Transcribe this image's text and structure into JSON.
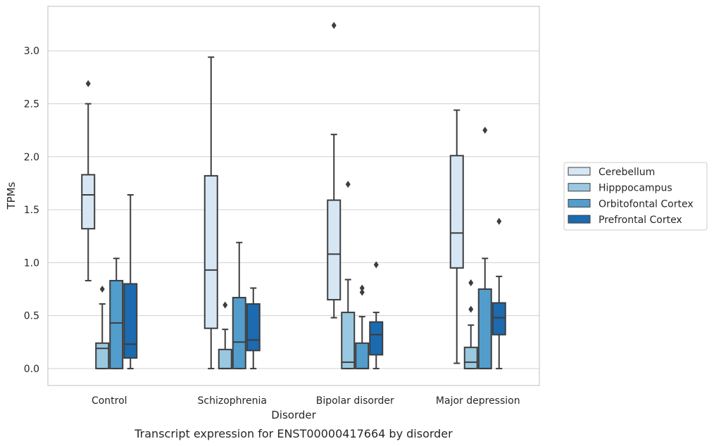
{
  "chart_data": {
    "type": "boxplot",
    "title": "",
    "caption": "Transcript expression for ENST00000417664 by disorder",
    "xlabel": "Disorder",
    "ylabel": "TPMs",
    "ylim": [
      -0.16,
      3.42
    ],
    "yticks": [
      "0.0",
      "0.5",
      "1.0",
      "1.5",
      "2.0",
      "2.5",
      "3.0"
    ],
    "grid": "horizontal",
    "legend_position": "right",
    "categories": [
      "Control",
      "Schizophrenia",
      "Bipolar disorder",
      "Major depression"
    ],
    "series": [
      {
        "name": "Cerebellum",
        "color": "#d6e6f4",
        "boxes": [
          {
            "whislo": 0.83,
            "q1": 1.32,
            "med": 1.64,
            "q3": 1.83,
            "whishi": 2.5,
            "fliers": [
              2.69
            ]
          },
          {
            "whislo": 0.0,
            "q1": 0.38,
            "med": 0.93,
            "q3": 1.82,
            "whishi": 2.94,
            "fliers": []
          },
          {
            "whislo": 0.48,
            "q1": 0.65,
            "med": 1.08,
            "q3": 1.59,
            "whishi": 2.21,
            "fliers": [
              3.24
            ]
          },
          {
            "whislo": 0.05,
            "q1": 0.95,
            "med": 1.28,
            "q3": 2.01,
            "whishi": 2.44,
            "fliers": []
          }
        ]
      },
      {
        "name": "Hipppocampus",
        "color": "#9ac8e0",
        "boxes": [
          {
            "whislo": 0.0,
            "q1": 0.0,
            "med": 0.19,
            "q3": 0.24,
            "whishi": 0.61,
            "fliers": [
              0.75
            ]
          },
          {
            "whislo": 0.0,
            "q1": 0.0,
            "med": 0.0,
            "q3": 0.18,
            "whishi": 0.37,
            "fliers": [
              0.6
            ]
          },
          {
            "whislo": 0.0,
            "q1": 0.0,
            "med": 0.06,
            "q3": 0.53,
            "whishi": 0.84,
            "fliers": [
              1.74
            ]
          },
          {
            "whislo": 0.0,
            "q1": 0.0,
            "med": 0.06,
            "q3": 0.2,
            "whishi": 0.41,
            "fliers": [
              0.56,
              0.81
            ]
          }
        ]
      },
      {
        "name": "Orbitofontal Cortex",
        "color": "#529dcc",
        "boxes": [
          {
            "whislo": 0.0,
            "q1": 0.0,
            "med": 0.43,
            "q3": 0.83,
            "whishi": 1.04,
            "fliers": []
          },
          {
            "whislo": 0.0,
            "q1": 0.0,
            "med": 0.25,
            "q3": 0.67,
            "whishi": 1.19,
            "fliers": []
          },
          {
            "whislo": 0.0,
            "q1": 0.0,
            "med": 0.0,
            "q3": 0.24,
            "whishi": 0.49,
            "fliers": [
              0.72,
              0.76
            ]
          },
          {
            "whislo": 0.0,
            "q1": 0.0,
            "med": 0.0,
            "q3": 0.75,
            "whishi": 1.04,
            "fliers": [
              2.25
            ]
          }
        ]
      },
      {
        "name": "Prefrontal Cortex",
        "color": "#1c6aaf",
        "boxes": [
          {
            "whislo": 0.0,
            "q1": 0.1,
            "med": 0.23,
            "q3": 0.8,
            "whishi": 1.64,
            "fliers": []
          },
          {
            "whislo": 0.0,
            "q1": 0.17,
            "med": 0.27,
            "q3": 0.61,
            "whishi": 0.76,
            "fliers": []
          },
          {
            "whislo": 0.0,
            "q1": 0.13,
            "med": 0.32,
            "q3": 0.44,
            "whishi": 0.53,
            "fliers": [
              0.98
            ]
          },
          {
            "whislo": 0.0,
            "q1": 0.32,
            "med": 0.48,
            "q3": 0.62,
            "whishi": 0.87,
            "fliers": [
              1.39
            ]
          }
        ]
      }
    ]
  }
}
